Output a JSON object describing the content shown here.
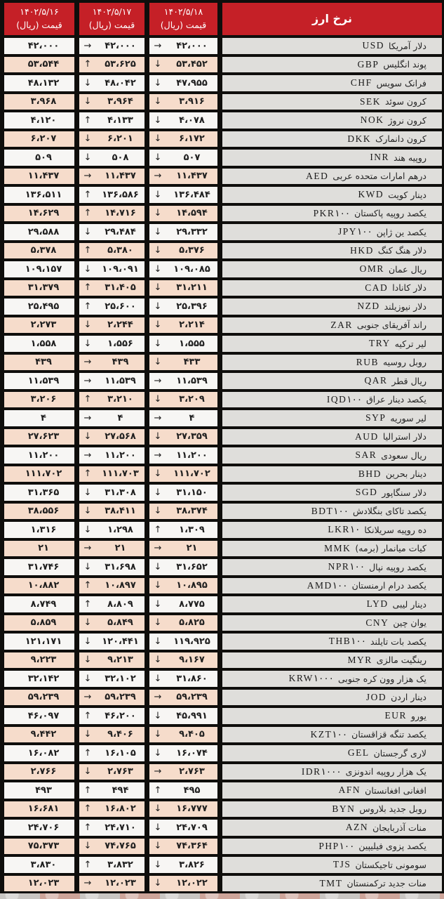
{
  "colors": {
    "header_red": "#c52027",
    "row_peach": "#f6dccb",
    "row_white": "#f7f6f4",
    "currency_cell_gray": "#dfdedb",
    "border_black": "#0f0e0c",
    "text_dark": "#1f1f1f"
  },
  "trend_glyphs": {
    "up": "↑",
    "down": "↓",
    "steady": "→"
  },
  "chart_data": {
    "type": "table",
    "title": "نرخ ارز",
    "price_unit_label": "قیمت (ریال)",
    "columns": [
      {
        "date": "۱۴۰۲/۵/۱۶",
        "has_trend_arrows": false
      },
      {
        "date": "۱۴۰۲/۵/۱۷",
        "has_trend_arrows": true
      },
      {
        "date": "۱۴۰۲/۵/۱۸",
        "has_trend_arrows": true
      }
    ],
    "rows": [
      {
        "code": "USD",
        "name": "دلار آمریکا",
        "v18": "۴۲،۰۰۰",
        "t18": "steady",
        "v17": "۴۲،۰۰۰",
        "t17": "steady",
        "v16": "۴۲،۰۰۰"
      },
      {
        "code": "GBP",
        "name": "پوند انگلیس",
        "v18": "۵۳،۴۵۲",
        "t18": "down",
        "v17": "۵۳،۶۲۵",
        "t17": "up",
        "v16": "۵۳،۵۴۴"
      },
      {
        "code": "CHF",
        "name": "فرانک سویس",
        "v18": "۴۷،۹۵۵",
        "t18": "down",
        "v17": "۴۸،۰۴۲",
        "t17": "down",
        "v16": "۴۸،۱۳۲"
      },
      {
        "code": "SEK",
        "name": "کرون سوئد",
        "v18": "۳،۹۱۶",
        "t18": "down",
        "v17": "۳،۹۶۴",
        "t17": "down",
        "v16": "۳،۹۶۸"
      },
      {
        "code": "NOK",
        "name": "کرون نروژ",
        "v18": "۴،۰۷۸",
        "t18": "down",
        "v17": "۴،۱۳۳",
        "t17": "up",
        "v16": "۴،۱۲۰"
      },
      {
        "code": "DKK",
        "name": "کرون دانمارک",
        "v18": "۶،۱۷۲",
        "t18": "down",
        "v17": "۶،۲۰۱",
        "t17": "down",
        "v16": "۶،۲۰۷"
      },
      {
        "code": "INR",
        "name": "روپیه هند",
        "v18": "۵۰۷",
        "t18": "down",
        "v17": "۵۰۸",
        "t17": "down",
        "v16": "۵۰۹"
      },
      {
        "code": "AED",
        "name": "درهم امارات متحده عربی",
        "v18": "۱۱،۴۳۷",
        "t18": "steady",
        "v17": "۱۱،۴۳۷",
        "t17": "steady",
        "v16": "۱۱،۴۳۷"
      },
      {
        "code": "KWD",
        "name": "دینار کویت",
        "v18": "۱۳۶،۴۸۴",
        "t18": "down",
        "v17": "۱۳۶،۵۸۶",
        "t17": "up",
        "v16": "۱۳۶،۵۱۱"
      },
      {
        "code": "PKR۱۰۰",
        "name": "یکصد روپیه پاکستان",
        "v18": "۱۴،۵۹۴",
        "t18": "down",
        "v17": "۱۴،۷۱۶",
        "t17": "up",
        "v16": "۱۴،۶۲۹"
      },
      {
        "code": "JPY۱۰۰",
        "name": "یکصد ین ژاپن",
        "v18": "۲۹،۳۳۲",
        "t18": "down",
        "v17": "۲۹،۴۸۴",
        "t17": "down",
        "v16": "۲۹،۵۸۸"
      },
      {
        "code": "HKD",
        "name": "دلار هنگ کنگ",
        "v18": "۵،۳۷۶",
        "t18": "down",
        "v17": "۵،۳۸۰",
        "t17": "up",
        "v16": "۵،۳۷۸"
      },
      {
        "code": "OMR",
        "name": "ریال عمان",
        "v18": "۱۰۹،۰۸۵",
        "t18": "down",
        "v17": "۱۰۹،۰۹۱",
        "t17": "down",
        "v16": "۱۰۹،۱۵۷"
      },
      {
        "code": "CAD",
        "name": "دلار کانادا",
        "v18": "۳۱،۲۱۱",
        "t18": "down",
        "v17": "۳۱،۴۰۵",
        "t17": "up",
        "v16": "۳۱،۳۷۹"
      },
      {
        "code": "NZD",
        "name": "دلار نیوزیلند",
        "v18": "۲۵،۳۹۶",
        "t18": "down",
        "v17": "۲۵،۶۰۰",
        "t17": "up",
        "v16": "۲۵،۴۹۵"
      },
      {
        "code": "ZAR",
        "name": "راند آفریقای جنوبی",
        "v18": "۲،۲۱۴",
        "t18": "down",
        "v17": "۲،۲۴۴",
        "t17": "down",
        "v16": "۲،۲۷۳"
      },
      {
        "code": "TRY",
        "name": "لیر ترکیه",
        "v18": "۱،۵۵۵",
        "t18": "down",
        "v17": "۱،۵۵۶",
        "t17": "down",
        "v16": "۱،۵۵۸"
      },
      {
        "code": "RUB",
        "name": "روبل روسیه",
        "v18": "۴۳۳",
        "t18": "down",
        "v17": "۴۳۹",
        "t17": "steady",
        "v16": "۴۳۹"
      },
      {
        "code": "QAR",
        "name": "ریال قطر",
        "v18": "۱۱،۵۳۹",
        "t18": "steady",
        "v17": "۱۱،۵۳۹",
        "t17": "steady",
        "v16": "۱۱،۵۳۹"
      },
      {
        "code": "IQD۱۰۰",
        "name": "یکصد دینار عراق",
        "v18": "۳،۲۰۹",
        "t18": "down",
        "v17": "۳،۲۱۰",
        "t17": "up",
        "v16": "۳،۲۰۶"
      },
      {
        "code": "SYP",
        "name": "لیر سوریه",
        "v18": "۴",
        "t18": "steady",
        "v17": "۴",
        "t17": "steady",
        "v16": "۴"
      },
      {
        "code": "AUD",
        "name": "دلار استرالیا",
        "v18": "۲۷،۳۵۹",
        "t18": "down",
        "v17": "۲۷،۵۶۸",
        "t17": "down",
        "v16": "۲۷،۶۲۳"
      },
      {
        "code": "SAR",
        "name": "ریال سعودی",
        "v18": "۱۱،۲۰۰",
        "t18": "steady",
        "v17": "۱۱،۲۰۰",
        "t17": "steady",
        "v16": "۱۱،۲۰۰"
      },
      {
        "code": "BHD",
        "name": "دینار بحرین",
        "v18": "۱۱۱،۷۰۲",
        "t18": "down",
        "v17": "۱۱۱،۷۰۳",
        "t17": "up",
        "v16": "۱۱۱،۷۰۲"
      },
      {
        "code": "SGD",
        "name": "دلار سنگاپور",
        "v18": "۳۱،۱۵۰",
        "t18": "down",
        "v17": "۳۱،۳۰۸",
        "t17": "down",
        "v16": "۳۱،۳۶۵"
      },
      {
        "code": "BDT۱۰۰",
        "name": "یکصد تاکای بنگلادش",
        "v18": "۳۸،۳۷۴",
        "t18": "down",
        "v17": "۳۸،۴۱۱",
        "t17": "down",
        "v16": "۳۸،۵۵۶"
      },
      {
        "code": "LKR۱۰",
        "name": "ده روپیه سریلانکا",
        "v18": "۱،۳۰۹",
        "t18": "up",
        "v17": "۱،۲۹۸",
        "t17": "down",
        "v16": "۱،۳۱۶"
      },
      {
        "code": "MMK",
        "name": "کیات میانمار (برمه)",
        "v18": "۲۱",
        "t18": "steady",
        "v17": "۲۱",
        "t17": "steady",
        "v16": "۲۱"
      },
      {
        "code": "NPR۱۰۰",
        "name": "یکصد روپیه نپال",
        "v18": "۳۱،۶۵۲",
        "t18": "down",
        "v17": "۳۱،۶۹۸",
        "t17": "down",
        "v16": "۳۱،۷۴۶"
      },
      {
        "code": "AMD۱۰۰",
        "name": "یکصد درام ارمنستان",
        "v18": "۱۰،۸۹۵",
        "t18": "down",
        "v17": "۱۰،۸۹۷",
        "t17": "up",
        "v16": "۱۰،۸۸۲"
      },
      {
        "code": "LYD",
        "name": "دینار لیبی",
        "v18": "۸،۷۷۵",
        "t18": "down",
        "v17": "۸،۸۰۹",
        "t17": "up",
        "v16": "۸،۷۴۹"
      },
      {
        "code": "CNY",
        "name": "یوان چین",
        "v18": "۵،۸۲۵",
        "t18": "down",
        "v17": "۵،۸۴۹",
        "t17": "down",
        "v16": "۵،۸۵۹"
      },
      {
        "code": "THB۱۰۰",
        "name": "یکصد بات تایلند",
        "v18": "۱۱۹،۹۲۵",
        "t18": "down",
        "v17": "۱۲۰،۴۴۱",
        "t17": "down",
        "v16": "۱۲۱،۱۷۱"
      },
      {
        "code": "MYR",
        "name": "رینگیت مالزی",
        "v18": "۹،۱۶۷",
        "t18": "down",
        "v17": "۹،۲۱۳",
        "t17": "down",
        "v16": "۹،۲۲۳"
      },
      {
        "code": "KRW۱۰۰۰",
        "name": "یک هزار وون کره جنوبی",
        "v18": "۳۱،۸۶۰",
        "t18": "down",
        "v17": "۳۲،۱۰۲",
        "t17": "down",
        "v16": "۳۲،۱۴۲"
      },
      {
        "code": "JOD",
        "name": "دینار اردن",
        "v18": "۵۹،۲۳۹",
        "t18": "steady",
        "v17": "۵۹،۲۳۹",
        "t17": "steady",
        "v16": "۵۹،۲۳۹"
      },
      {
        "code": "EUR",
        "name": "یورو",
        "v18": "۴۵،۹۹۱",
        "t18": "down",
        "v17": "۴۶،۲۰۰",
        "t17": "up",
        "v16": "۴۶،۰۹۷"
      },
      {
        "code": "KZT۱۰۰",
        "name": "یکصد تنگه قزاقستان",
        "v18": "۹،۴۰۵",
        "t18": "down",
        "v17": "۹،۴۰۶",
        "t17": "down",
        "v16": "۹،۴۴۲"
      },
      {
        "code": "GEL",
        "name": "لاری گرجستان",
        "v18": "۱۶،۰۷۴",
        "t18": "down",
        "v17": "۱۶،۱۰۵",
        "t17": "up",
        "v16": "۱۶،۰۸۲"
      },
      {
        "code": "IDR۱۰۰۰",
        "name": "یک هزار روپیه اندونزی",
        "v18": "۲،۷۶۳",
        "t18": "steady",
        "v17": "۲،۷۶۳",
        "t17": "down",
        "v16": "۲،۷۶۶"
      },
      {
        "code": "AFN",
        "name": "افغانی افغانستان",
        "v18": "۴۹۵",
        "t18": "up",
        "v17": "۴۹۴",
        "t17": "up",
        "v16": "۴۹۳"
      },
      {
        "code": "BYN",
        "name": "روبل جدید بلاروس",
        "v18": "۱۶،۷۷۷",
        "t18": "down",
        "v17": "۱۶،۸۰۲",
        "t17": "up",
        "v16": "۱۶،۶۸۱"
      },
      {
        "code": "AZN",
        "name": "منات آذربایجان",
        "v18": "۲۴،۷۰۹",
        "t18": "down",
        "v17": "۲۴،۷۱۰",
        "t17": "up",
        "v16": "۲۴،۷۰۶"
      },
      {
        "code": "PHP۱۰۰",
        "name": "یکصد پزوی فیلیپین",
        "v18": "۷۴،۳۶۴",
        "t18": "down",
        "v17": "۷۴،۷۶۵",
        "t17": "down",
        "v16": "۷۵،۳۷۳"
      },
      {
        "code": "TJS",
        "name": "سومونی تاجیکستان",
        "v18": "۳،۸۲۶",
        "t18": "down",
        "v17": "۳،۸۳۲",
        "t17": "up",
        "v16": "۳،۸۳۰"
      },
      {
        "code": "TMT",
        "name": "منات جدید ترکمنستان",
        "v18": "۱۲،۰۲۲",
        "t18": "down",
        "v17": "۱۲،۰۲۳",
        "t17": "steady",
        "v16": "۱۲،۰۲۳"
      }
    ]
  }
}
